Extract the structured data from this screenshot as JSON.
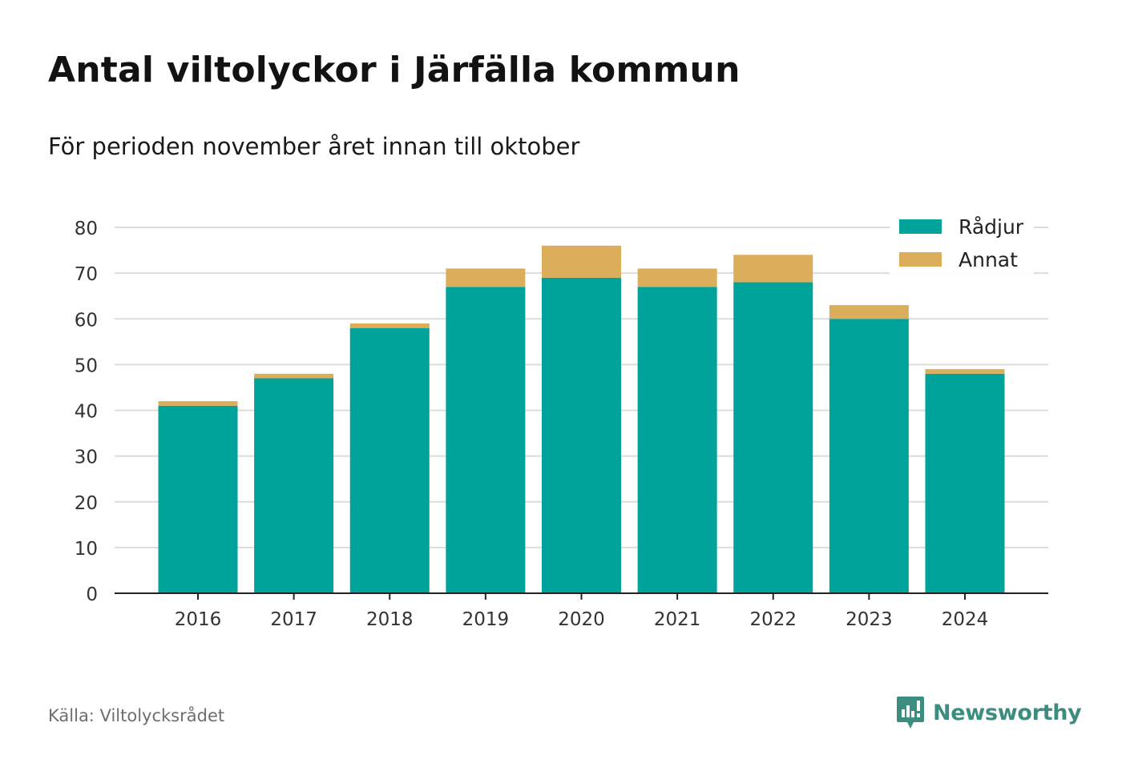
{
  "title": "Antal viltolyckor i Järfälla kommun",
  "subtitle": "För perioden november året innan till oktober",
  "source": "Källa: Viltolycksrådet",
  "brand": {
    "name": "Newsworthy",
    "icon": "newsworthy-logo-icon",
    "color": "#3d8c80"
  },
  "chart_data": {
    "type": "bar",
    "stacked": true,
    "categories": [
      "2016",
      "2017",
      "2018",
      "2019",
      "2020",
      "2021",
      "2022",
      "2023",
      "2024"
    ],
    "series": [
      {
        "name": "Rådjur",
        "color": "#00a39a",
        "values": [
          41,
          47,
          58,
          67,
          69,
          67,
          68,
          60,
          48
        ]
      },
      {
        "name": "Annat",
        "color": "#dcae5b",
        "values": [
          1,
          1,
          1,
          4,
          7,
          4,
          6,
          3,
          1
        ]
      }
    ],
    "ylim": [
      0,
      80
    ],
    "yticks": [
      "0",
      "10",
      "20",
      "30",
      "40",
      "50",
      "60",
      "70",
      "80"
    ],
    "grid": true,
    "legend": "top-right"
  }
}
